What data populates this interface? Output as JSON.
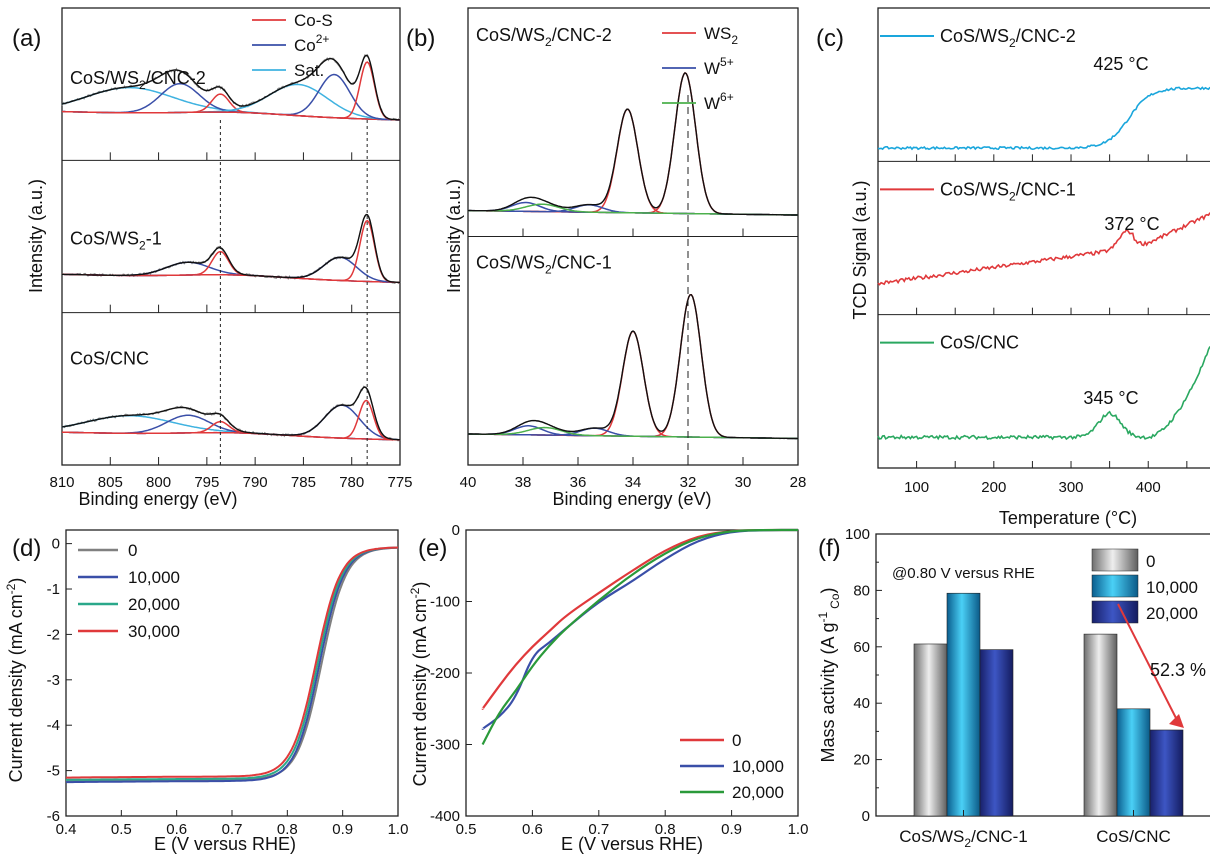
{
  "chart_data": [
    {
      "panel": "(a)",
      "type": "line",
      "xlabel": "Binding energy (eV)",
      "ylabel": "Intensity (a.u.)",
      "xlim": [
        810,
        775
      ],
      "xticks": [
        810,
        805,
        800,
        795,
        790,
        785,
        780,
        775
      ],
      "legend": [
        {
          "name": "Co-S",
          "color": "#e0393b"
        },
        {
          "name": "Co2+",
          "base": "Co",
          "sup": "2+",
          "color": "#3a4fa8"
        },
        {
          "name": "Sat.",
          "color": "#3fb2e0"
        }
      ],
      "subplots": [
        {
          "label": "CoS/WS2/CNC-2",
          "label_main": "CoS/WS",
          "label_sub": "2",
          "label_tail": "/CNC-2",
          "peaks": [
            {
              "kind": "sat",
              "center": 803,
              "height": 0.42,
              "width": 4.5
            },
            {
              "kind": "co2",
              "center": 797.8,
              "height": 0.48,
              "width": 2.0
            },
            {
              "kind": "cos",
              "center": 793.6,
              "height": 0.3,
              "width": 0.9
            },
            {
              "kind": "sat",
              "center": 785.5,
              "height": 0.52,
              "width": 3.0
            },
            {
              "kind": "co2",
              "center": 781.8,
              "height": 0.72,
              "width": 1.6
            },
            {
              "kind": "cos",
              "center": 778.4,
              "height": 0.95,
              "width": 0.75
            }
          ]
        },
        {
          "label": "CoS/WS2-1",
          "label_main": "CoS/WS",
          "label_sub": "2",
          "label_tail": "-1",
          "peaks": [
            {
              "kind": "co2",
              "center": 797,
              "height": 0.22,
              "width": 2.2
            },
            {
              "kind": "cos",
              "center": 793.6,
              "height": 0.4,
              "width": 0.85
            },
            {
              "kind": "co2",
              "center": 781.2,
              "height": 0.4,
              "width": 1.7
            },
            {
              "kind": "cos",
              "center": 778.4,
              "height": 1.05,
              "width": 0.75
            }
          ]
        },
        {
          "label": "CoS/CNC",
          "label_main": "CoS/CNC",
          "label_sub": "",
          "label_tail": "",
          "peaks": [
            {
              "kind": "sat",
              "center": 803,
              "height": 0.32,
              "width": 4.5
            },
            {
              "kind": "co2",
              "center": 797,
              "height": 0.32,
              "width": 2.2
            },
            {
              "kind": "cos",
              "center": 793.6,
              "height": 0.2,
              "width": 0.9
            },
            {
              "kind": "co2",
              "center": 781,
              "height": 0.6,
              "width": 1.8
            },
            {
              "kind": "cos",
              "center": 778.5,
              "height": 0.7,
              "width": 0.75
            }
          ]
        }
      ],
      "reference_lines": [
        793.6,
        778.4
      ]
    },
    {
      "panel": "(b)",
      "type": "line",
      "xlabel": "Binding energy (eV)",
      "ylabel": "Intensity (a.u.)",
      "xlim": [
        40,
        28
      ],
      "xticks": [
        40,
        38,
        36,
        34,
        32,
        30,
        28
      ],
      "legend": [
        {
          "name": "WS2",
          "base": "WS",
          "sub": "2",
          "color": "#e0393b"
        },
        {
          "name": "W5+",
          "base": "W",
          "sup": "5+",
          "color": "#3a4fa8"
        },
        {
          "name": "W6+",
          "base": "W",
          "sup": "6+",
          "color": "#4cb04c"
        }
      ],
      "subplots": [
        {
          "label": "CoS/WS2/CNC-2",
          "label_main": "CoS/WS",
          "label_sub": "2",
          "label_tail": "/CNC-2",
          "peaks": [
            {
              "kind": "ws2",
              "center": 34.2,
              "height": 0.7,
              "width": 0.38
            },
            {
              "kind": "ws2",
              "center": 32.1,
              "height": 0.95,
              "width": 0.38
            },
            {
              "kind": "w5",
              "center": 37.9,
              "height": 0.06,
              "width": 0.5
            },
            {
              "kind": "w5",
              "center": 35.6,
              "height": 0.05,
              "width": 0.5
            },
            {
              "kind": "w6",
              "center": 37.3,
              "height": 0.05,
              "width": 0.6
            }
          ]
        },
        {
          "label": "CoS/WS2/CNC-1",
          "label_main": "CoS/WS",
          "label_sub": "2",
          "label_tail": "/CNC-1",
          "peaks": [
            {
              "kind": "ws2",
              "center": 34.0,
              "height": 0.7,
              "width": 0.38
            },
            {
              "kind": "ws2",
              "center": 31.9,
              "height": 0.95,
              "width": 0.38
            },
            {
              "kind": "w5",
              "center": 37.8,
              "height": 0.06,
              "width": 0.5
            },
            {
              "kind": "w5",
              "center": 35.4,
              "height": 0.05,
              "width": 0.5
            },
            {
              "kind": "w6",
              "center": 37.2,
              "height": 0.05,
              "width": 0.6
            }
          ]
        }
      ],
      "reference_lines": [
        32.0
      ]
    },
    {
      "panel": "(c)",
      "type": "line",
      "xlabel": "Temperature (°C)",
      "ylabel": "TCD Signal (a.u.)",
      "xlim": [
        50,
        480
      ],
      "xticks": [
        100,
        200,
        300,
        400
      ],
      "series": [
        {
          "name": "CoS/WS2/CNC-2",
          "base": "CoS/WS",
          "sub": "2",
          "tail": "/CNC-2",
          "color": "#1aa6dc",
          "annotation": "425 °C"
        },
        {
          "name": "CoS/WS2/CNC-1",
          "base": "CoS/WS",
          "sub": "2",
          "tail": "/CNC-1",
          "color": "#e0393b",
          "annotation": "372 °C"
        },
        {
          "name": "CoS/CNC",
          "base": "CoS/CNC",
          "sub": "",
          "tail": "",
          "color": "#2aa860",
          "annotation": "345 °C"
        }
      ]
    },
    {
      "panel": "(d)",
      "type": "line",
      "xlabel": "E (V versus RHE)",
      "ylabel": "Current density (mA cm-2)",
      "ylabel_base": "Current density (mA cm",
      "ylabel_sup": "-2",
      "ylabel_tail": ")",
      "xlim": [
        0.4,
        1.0
      ],
      "ylim": [
        -6,
        0.3
      ],
      "xticks": [
        0.4,
        0.5,
        0.6,
        0.7,
        0.8,
        0.9,
        1.0
      ],
      "yticks": [
        0,
        -1,
        -2,
        -3,
        -4,
        -5,
        -6
      ],
      "series": [
        {
          "name": "0",
          "color": "#808080",
          "e_half": 0.862,
          "jl": -5.12
        },
        {
          "name": "10,000",
          "color": "#3a4fa8",
          "e_half": 0.858,
          "jl": -5.15
        },
        {
          "name": "20,000",
          "color": "#2aa88a",
          "e_half": 0.855,
          "jl": -5.1
        },
        {
          "name": "30,000",
          "color": "#e0393b",
          "e_half": 0.852,
          "jl": -5.05
        }
      ]
    },
    {
      "panel": "(e)",
      "type": "line",
      "xlabel": "E (V versus RHE)",
      "ylabel": "Current density (mA cm-2)",
      "ylabel_base": "Current density (mA cm",
      "ylabel_sup": "-2",
      "ylabel_tail": ")",
      "xlim": [
        0.5,
        1.0
      ],
      "ylim": [
        -400,
        0
      ],
      "xticks": [
        0.5,
        0.6,
        0.7,
        0.8,
        0.9,
        1.0
      ],
      "yticks": [
        0,
        -100,
        -200,
        -300,
        -400
      ],
      "series": [
        {
          "name": "0",
          "color": "#e0393b",
          "x": [
            0.525,
            0.55,
            0.575,
            0.6,
            0.625,
            0.65,
            0.7,
            0.75,
            0.8,
            0.85,
            0.9,
            0.95,
            1.0
          ],
          "y": [
            -250,
            -218,
            -188,
            -163,
            -142,
            -120,
            -88,
            -57,
            -28,
            -8,
            -1,
            0,
            0
          ]
        },
        {
          "name": "10,000",
          "color": "#3a4fa8",
          "x": [
            0.525,
            0.55,
            0.575,
            0.6,
            0.625,
            0.65,
            0.7,
            0.75,
            0.8,
            0.85,
            0.9,
            0.95,
            1.0
          ],
          "y": [
            -278,
            -262,
            -235,
            -175,
            -158,
            -138,
            -100,
            -72,
            -40,
            -14,
            -2,
            0,
            0
          ]
        },
        {
          "name": "20,000",
          "color": "#2a9a3a",
          "x": [
            0.525,
            0.55,
            0.575,
            0.6,
            0.625,
            0.65,
            0.7,
            0.75,
            0.8,
            0.85,
            0.9,
            0.95,
            1.0
          ],
          "y": [
            -300,
            -255,
            -225,
            -190,
            -162,
            -138,
            -98,
            -62,
            -32,
            -10,
            -1,
            0,
            0
          ]
        }
      ]
    },
    {
      "panel": "(f)",
      "type": "bar",
      "ylabel": "Mass activity (A g-1 Co)",
      "ylabel_base": "Mass activity (A g",
      "ylabel_sup": "-1",
      "ylabel_sub": "Co",
      "ylabel_tail": ")",
      "ylim": [
        0,
        100
      ],
      "yticks": [
        0,
        20,
        40,
        60,
        80,
        100
      ],
      "categories": [
        "CoS/WS2/CNC-1",
        "CoS/CNC"
      ],
      "category_labels": [
        {
          "base": "CoS/WS",
          "sub": "2",
          "tail": "/CNC-1"
        },
        {
          "base": "CoS/CNC",
          "sub": "",
          "tail": ""
        }
      ],
      "condition_text": "@0.80 V versus RHE",
      "series": [
        {
          "name": "0",
          "values": [
            61,
            64.5
          ],
          "color": "#9a9a9a"
        },
        {
          "name": "10,000",
          "values": [
            79,
            38
          ],
          "color": "#1a9ad8"
        },
        {
          "name": "20,000",
          "values": [
            59,
            30.5
          ],
          "color": "#283a9a"
        }
      ],
      "annotation": "52.3 %",
      "annotation_color": "#e0393b"
    }
  ]
}
